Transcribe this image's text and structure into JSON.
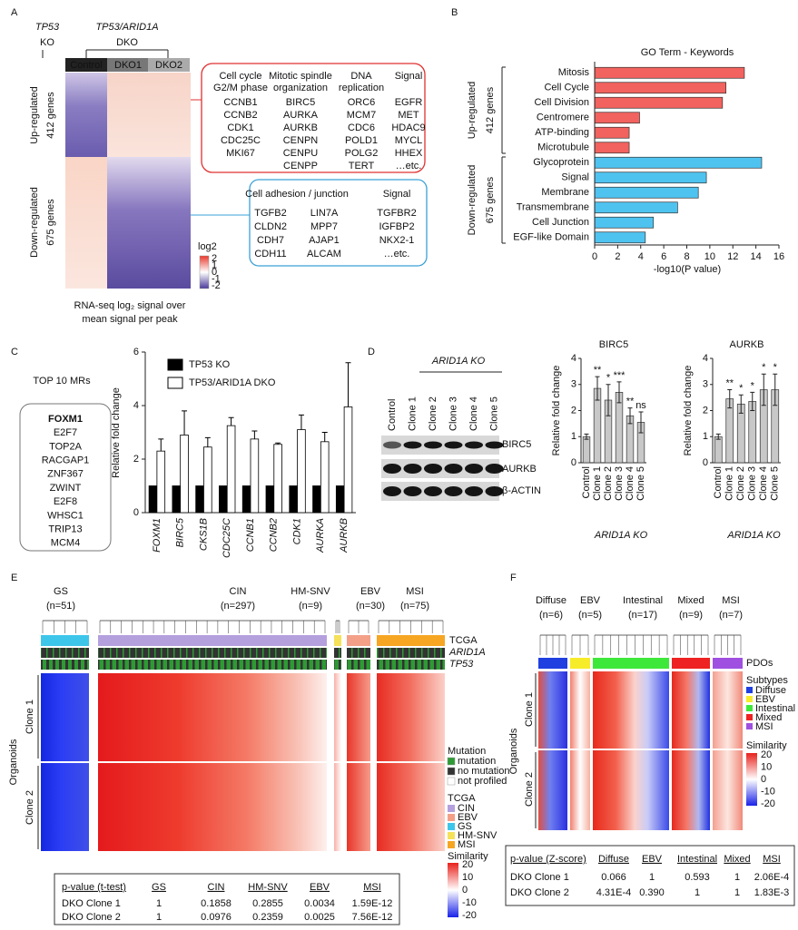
{
  "panels": {
    "letters": [
      "A",
      "B",
      "C",
      "D",
      "E",
      "F"
    ],
    "A": {
      "genotypes": [
        {
          "gene": "TP53",
          "type": "KO"
        },
        {
          "gene": "TP53/ARID1A",
          "type": "DKO"
        }
      ],
      "samples": [
        "Control",
        "DKO1",
        "DKO2"
      ],
      "groups": [
        {
          "name": "Up-regulated",
          "count": "412 genes"
        },
        {
          "name": "Down-regulated",
          "count": "675 genes"
        }
      ],
      "up_box": [
        {
          "header": [
            "Cell cycle",
            "G2/M phase"
          ],
          "genes": [
            "CCNB1",
            "CCNB2",
            "CDK1",
            "CDC25C",
            "MKI67"
          ]
        },
        {
          "header": [
            "Mitotic spindle",
            "organization"
          ],
          "genes": [
            "BIRC5",
            "AURKA",
            "AURKB",
            "CENPN",
            "CENPU",
            "CENPP"
          ]
        },
        {
          "header": [
            "DNA",
            "replication"
          ],
          "genes": [
            "ORC6",
            "MCM7",
            "CDC6",
            "POLD1",
            "POLG2",
            "TERT"
          ]
        },
        {
          "header": [
            "Signal"
          ],
          "genes": [
            "EGFR",
            "MET",
            "HDAC9",
            "MYCL",
            "HHEX",
            "…etc."
          ]
        }
      ],
      "down_box": {
        "headers": [
          "Cell adhesion / junction",
          "Signal"
        ],
        "columns": [
          [
            "TGFB2",
            "CLDN2",
            "CDH7",
            "CDH11"
          ],
          [
            "LIN7A",
            "MPP7",
            "AJAP1",
            "ALCAM"
          ],
          [
            "TGFBR2",
            "IGFBP2",
            "NKX2-1",
            "…etc."
          ]
        ]
      },
      "legend": {
        "title": "log2",
        "ticks": [
          2,
          1,
          0,
          -1,
          -2
        ]
      },
      "caption": [
        "RNA-seq log₂ signal over",
        "mean signal per peak"
      ]
    },
    "C": {
      "title": "TOP 10 MRs",
      "regulators": [
        "FOXM1",
        "E2F7",
        "TOP2A",
        "RACGAP1",
        "ZNF367",
        "ZWINT",
        "E2F8",
        "WHSC1",
        "TRIP13",
        "MCM4"
      ]
    },
    "D": {
      "header": "ARID1A KO",
      "lanes": [
        "Control",
        "Clone 1",
        "Clone 2",
        "Clone 3",
        "Clone 4",
        "Clone 5"
      ],
      "bands": [
        "BIRC5",
        "AURKB",
        "β-ACTIN"
      ]
    },
    "E": {
      "groups": [
        {
          "name": "GS",
          "n": "(n=51)",
          "color": "#3ec6ea"
        },
        {
          "name": "CIN",
          "n": "(n=297)",
          "color": "#b5a0de"
        },
        {
          "name": "HM-SNV",
          "n": "(n=9)",
          "color": "#f5e15a"
        },
        {
          "name": "EBV",
          "n": "(n=30)",
          "color": "#f4a088"
        },
        {
          "name": "MSI",
          "n": "(n=75)",
          "color": "#f6a623"
        }
      ],
      "tracks": [
        "TCGA",
        "ARID1A",
        "TP53"
      ],
      "samples_title": "Organoids",
      "clones": [
        "Clone 1",
        "Clone 2"
      ],
      "legend": {
        "mutation_title": "Mutation",
        "mutation": [
          {
            "name": "mutation",
            "color": "#2e9a34"
          },
          {
            "name": "no mutation",
            "color": "#333333"
          },
          {
            "name": "not profiled",
            "color": "#ffffff"
          }
        ],
        "tcga_title": "TCGA",
        "tcga": [
          {
            "name": "CIN",
            "color": "#b5a0de"
          },
          {
            "name": "EBV",
            "color": "#f4a088"
          },
          {
            "name": "GS",
            "color": "#3ec6ea"
          },
          {
            "name": "HM-SNV",
            "color": "#f5e15a"
          },
          {
            "name": "MSI",
            "color": "#f6a623"
          }
        ],
        "similarity_title": "Similarity",
        "similarity_ticks": [
          20,
          10,
          0,
          -10,
          -20
        ]
      },
      "table": {
        "header": [
          "p-value (t-test)",
          "GS",
          "CIN",
          "HM-SNV",
          "EBV",
          "MSI"
        ],
        "rows": [
          [
            "DKO Clone 1",
            1,
            0.1858,
            0.2855,
            0.0034,
            "1.59E-12"
          ],
          [
            "DKO Clone 2",
            1,
            0.0976,
            0.2359,
            0.0025,
            "7.56E-12"
          ]
        ]
      }
    },
    "F": {
      "groups": [
        {
          "name": "Diffuse",
          "n": "(n=6)",
          "color": "#1f3fe0"
        },
        {
          "name": "EBV",
          "n": "(n=5)",
          "color": "#f7ec2a"
        },
        {
          "name": "Intestinal",
          "n": "(n=17)",
          "color": "#3ee83a"
        },
        {
          "name": "Mixed",
          "n": "(n=9)",
          "color": "#ee2222"
        },
        {
          "name": "MSI",
          "n": "(n=7)",
          "color": "#a050e0"
        }
      ],
      "track": "PDOs",
      "samples_title": "Organoids",
      "clones": [
        "Clone 1",
        "Clone 2"
      ],
      "legend": {
        "subtypes_title": "Subtypes",
        "subtypes": [
          {
            "name": "Diffuse",
            "color": "#1f3fe0"
          },
          {
            "name": "EBV",
            "color": "#f7ec2a"
          },
          {
            "name": "Intestinal",
            "color": "#3ee83a"
          },
          {
            "name": "Mixed",
            "color": "#ee2222"
          },
          {
            "name": "MSI",
            "color": "#a050e0"
          }
        ],
        "similarity_title": "Similarity",
        "similarity_ticks": [
          20,
          10,
          0,
          -10,
          -20
        ]
      },
      "table": {
        "header": [
          "p-value (Z-score)",
          "Diffuse",
          "EBV",
          "Intestinal",
          "Mixed",
          "MSI"
        ],
        "rows": [
          [
            "DKO Clone 1",
            0.066,
            1,
            0.593,
            1,
            "2.06E-4"
          ],
          [
            "DKO Clone 2",
            "4.31E-4",
            "0.390",
            1,
            1,
            "1.83E-3"
          ]
        ]
      }
    }
  },
  "chart_data": [
    {
      "type": "hbar",
      "title": "GO Term - Keywords",
      "x_label": "-log10(P value)",
      "categories": [
        "Mitosis",
        "Cell Cycle",
        "Cell Division",
        "Centromere",
        "ATP-binding",
        "Microtubule",
        "Glycoprotein",
        "Signal",
        "Membrane",
        "Transmembrane",
        "Cell Junction",
        "EGF-like Domain"
      ],
      "values": [
        13,
        11.4,
        11.1,
        3.9,
        3,
        3,
        14.5,
        9.7,
        9,
        7.2,
        5.1,
        4.4
      ],
      "colors": [
        "#f2625e",
        "#f2625e",
        "#f2625e",
        "#f2625e",
        "#f2625e",
        "#f2625e",
        "#4fc3f0",
        "#4fc3f0",
        "#4fc3f0",
        "#4fc3f0",
        "#4fc3f0",
        "#4fc3f0"
      ],
      "groups": [
        {
          "name": "Up-regulated",
          "count": "412 genes"
        },
        {
          "name": "Down-regulated",
          "count": "675 genes"
        }
      ],
      "xlim": [
        0,
        16
      ],
      "xticks": [
        0,
        2,
        4,
        6,
        8,
        10,
        12,
        14,
        16
      ]
    },
    {
      "type": "grouped_bar",
      "y_label": "Relative fold change",
      "categories": [
        "FOXM1",
        "BIRC5",
        "CKS1B",
        "CDC25C",
        "CCNB1",
        "CCNB2",
        "CDK1",
        "AURKA",
        "AURKB"
      ],
      "series": [
        {
          "name": "TP53 KO",
          "color": "#000000",
          "values": [
            1,
            1,
            1,
            1,
            1,
            1,
            1,
            1,
            1
          ]
        },
        {
          "name": "TP53/ARID1A DKO",
          "color": "#ffffff",
          "values": [
            2.3,
            2.9,
            2.45,
            3.25,
            2.75,
            2.55,
            3.1,
            2.65,
            3.95
          ],
          "errors": [
            0.45,
            0.9,
            0.35,
            0.3,
            0.3,
            0.05,
            0.55,
            0.35,
            1.65
          ]
        }
      ],
      "ylim": [
        0,
        6
      ],
      "yticks": [
        0,
        2,
        4,
        6
      ]
    },
    {
      "type": "bar",
      "title": "BIRC5",
      "y_label": "Relative fold change",
      "x_label": "ARID1A KO",
      "categories": [
        "Control",
        "Clone 1",
        "Clone 2",
        "Clone 3",
        "Clone 4",
        "Clone 5"
      ],
      "values": [
        1,
        2.85,
        2.4,
        2.7,
        1.8,
        1.55
      ],
      "errors": [
        0.1,
        0.45,
        0.6,
        0.4,
        0.3,
        0.4
      ],
      "significance": [
        null,
        "**",
        "*",
        "***",
        "**",
        "ns"
      ],
      "color": "#c8c8c8",
      "ylim": [
        0,
        4
      ],
      "yticks": [
        0,
        1,
        2,
        3,
        4
      ]
    },
    {
      "type": "bar",
      "title": "AURKB",
      "y_label": "Relative fold change",
      "x_label": "ARID1A KO",
      "categories": [
        "Control",
        "Clone 1",
        "Clone 2",
        "Clone 3",
        "Clone 4",
        "Clone 5"
      ],
      "values": [
        1,
        2.45,
        2.25,
        2.35,
        2.8,
        2.8
      ],
      "errors": [
        0.1,
        0.35,
        0.35,
        0.35,
        0.6,
        0.6
      ],
      "significance": [
        null,
        "**",
        "*",
        "*",
        "*",
        "*"
      ],
      "color": "#c8c8c8",
      "ylim": [
        0,
        4
      ],
      "yticks": [
        0,
        1,
        2,
        3,
        4
      ]
    }
  ]
}
